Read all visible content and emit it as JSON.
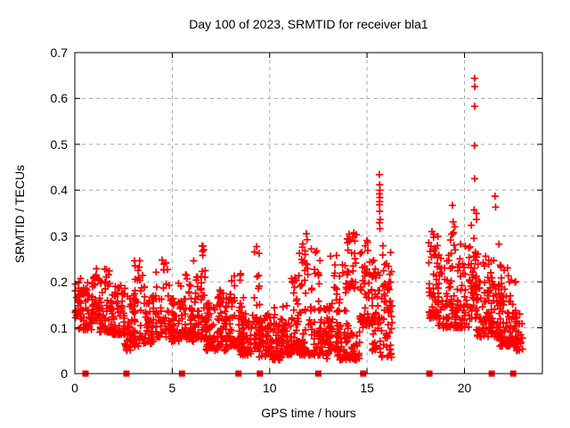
{
  "chart_data": {
    "type": "scatter",
    "title": "Day 100 of 2023, SRMTID for receiver bla1",
    "xlabel": "GPS time / hours",
    "ylabel": "SRMTID / TECUs",
    "xlim": [
      0,
      24
    ],
    "ylim": [
      0,
      0.7
    ],
    "xticks": [
      0,
      5,
      10,
      15,
      20
    ],
    "yticks": [
      0,
      0.1,
      0.2,
      0.3,
      0.4,
      0.5,
      0.6,
      0.7
    ],
    "xtick_labels": [
      "0",
      "5",
      "10",
      "15",
      "20"
    ],
    "ytick_labels": [
      "0",
      "0.1",
      "0.2",
      "0.3",
      "0.4",
      "0.5",
      "0.6",
      "0.7"
    ],
    "grid": true,
    "grid_color": "#a8a8a8",
    "legend": "none",
    "point_color": "#ff0000",
    "border_color": "#000000",
    "series": [
      {
        "name": "srmtid-plus-points",
        "marker": "plus",
        "color": "#ff0000",
        "cluster_format": [
          "t_start_h",
          "t_end_h",
          "v_min_TECU",
          "v_max_TECU",
          "count",
          "skew_toward_min"
        ],
        "clusters": [
          [
            0.0,
            0.35,
            0.1,
            0.215,
            28,
            0.9
          ],
          [
            0.15,
            0.95,
            0.095,
            0.2,
            55,
            1.3
          ],
          [
            0.9,
            1.3,
            0.115,
            0.25,
            40,
            1.6
          ],
          [
            1.25,
            1.95,
            0.09,
            0.235,
            58,
            1.9
          ],
          [
            1.9,
            2.6,
            0.085,
            0.2,
            60,
            1.7
          ],
          [
            2.55,
            3.1,
            0.05,
            0.18,
            52,
            1.5
          ],
          [
            3.05,
            3.65,
            0.06,
            0.25,
            50,
            2.0
          ],
          [
            3.6,
            4.2,
            0.065,
            0.17,
            46,
            1.5
          ],
          [
            4.15,
            4.95,
            0.08,
            0.25,
            55,
            2.0
          ],
          [
            4.9,
            5.35,
            0.07,
            0.185,
            40,
            1.6
          ],
          [
            5.3,
            5.7,
            0.08,
            0.21,
            36,
            1.7
          ],
          [
            5.65,
            6.05,
            0.075,
            0.22,
            38,
            1.8
          ],
          [
            6.0,
            6.4,
            0.07,
            0.255,
            40,
            1.9
          ],
          [
            6.45,
            6.75,
            0.075,
            0.28,
            30,
            2.1
          ],
          [
            6.7,
            7.35,
            0.05,
            0.155,
            52,
            1.4
          ],
          [
            7.3,
            7.65,
            0.06,
            0.195,
            34,
            1.7
          ],
          [
            7.6,
            8.0,
            0.05,
            0.17,
            40,
            1.6
          ],
          [
            7.95,
            8.25,
            0.06,
            0.24,
            30,
            2.0
          ],
          [
            8.4,
            8.7,
            0.05,
            0.26,
            30,
            1.9
          ],
          [
            8.45,
            9.2,
            0.04,
            0.135,
            55,
            1.4
          ],
          [
            9.2,
            9.5,
            0.055,
            0.28,
            32,
            2.1
          ],
          [
            9.45,
            10.1,
            0.035,
            0.13,
            58,
            1.4
          ],
          [
            10.05,
            10.65,
            0.03,
            0.155,
            55,
            1.6
          ],
          [
            10.6,
            11.15,
            0.04,
            0.15,
            50,
            1.6
          ],
          [
            11.1,
            11.55,
            0.05,
            0.225,
            42,
            1.9
          ],
          [
            11.5,
            12.0,
            0.04,
            0.3,
            48,
            2.2
          ],
          [
            11.95,
            12.6,
            0.04,
            0.275,
            55,
            2.2
          ],
          [
            12.55,
            13.1,
            0.03,
            0.155,
            50,
            1.5
          ],
          [
            13.05,
            13.5,
            0.05,
            0.26,
            40,
            2.1
          ],
          [
            13.45,
            14.0,
            0.03,
            0.25,
            46,
            2.2
          ],
          [
            13.9,
            14.45,
            0.18,
            0.31,
            32,
            1.1
          ],
          [
            13.95,
            14.65,
            0.03,
            0.105,
            42,
            1.3
          ],
          [
            14.6,
            15.3,
            0.1,
            0.3,
            56,
            1.7
          ],
          [
            15.25,
            15.62,
            0.05,
            0.26,
            32,
            1.8
          ],
          [
            15.6,
            16.3,
            0.035,
            0.3,
            65,
            1.9
          ],
          [
            18.15,
            18.7,
            0.12,
            0.31,
            55,
            1.5
          ],
          [
            18.65,
            19.25,
            0.1,
            0.26,
            46,
            1.7
          ],
          [
            19.25,
            19.55,
            0.1,
            0.33,
            30,
            1.9
          ],
          [
            19.5,
            20.3,
            0.1,
            0.285,
            62,
            1.8
          ],
          [
            20.3,
            20.65,
            0.12,
            0.35,
            40,
            1.7
          ],
          [
            20.6,
            21.4,
            0.08,
            0.265,
            72,
            1.8
          ],
          [
            21.35,
            21.8,
            0.08,
            0.31,
            44,
            1.9
          ],
          [
            21.75,
            22.3,
            0.06,
            0.24,
            58,
            2.0
          ],
          [
            22.25,
            22.65,
            0.06,
            0.21,
            42,
            1.8
          ],
          [
            22.6,
            23.0,
            0.05,
            0.135,
            28,
            1.3
          ]
        ],
        "notable_points": [
          [
            15.63,
            0.434
          ],
          [
            15.65,
            0.412
          ],
          [
            15.66,
            0.4
          ],
          [
            15.64,
            0.392
          ],
          [
            15.66,
            0.384
          ],
          [
            15.65,
            0.375
          ],
          [
            15.63,
            0.368
          ],
          [
            15.65,
            0.354
          ],
          [
            15.67,
            0.336
          ],
          [
            15.64,
            0.329
          ],
          [
            15.66,
            0.316
          ],
          [
            20.52,
            0.644
          ],
          [
            20.53,
            0.626
          ],
          [
            20.52,
            0.583
          ],
          [
            20.51,
            0.497
          ],
          [
            20.52,
            0.425
          ],
          [
            20.5,
            0.357
          ],
          [
            19.38,
            0.367
          ],
          [
            19.42,
            0.331
          ],
          [
            21.57,
            0.387
          ],
          [
            21.6,
            0.363
          ],
          [
            11.88,
            0.305
          ],
          [
            11.92,
            0.292
          ],
          [
            14.32,
            0.307
          ],
          [
            14.46,
            0.303
          ],
          [
            18.33,
            0.31
          ],
          [
            18.42,
            0.304
          ],
          [
            6.58,
            0.278
          ],
          [
            6.62,
            0.27
          ],
          [
            9.33,
            0.277
          ]
        ],
        "data_gap_hours": [
          16.3,
          18.15
        ]
      },
      {
        "name": "event-squares-on-axis",
        "marker": "filled-square",
        "color": "#ff0000",
        "y_value": 0,
        "hours": [
          0.55,
          2.65,
          5.5,
          8.4,
          9.5,
          12.5,
          14.8,
          18.2,
          21.4,
          22.5
        ]
      }
    ]
  }
}
